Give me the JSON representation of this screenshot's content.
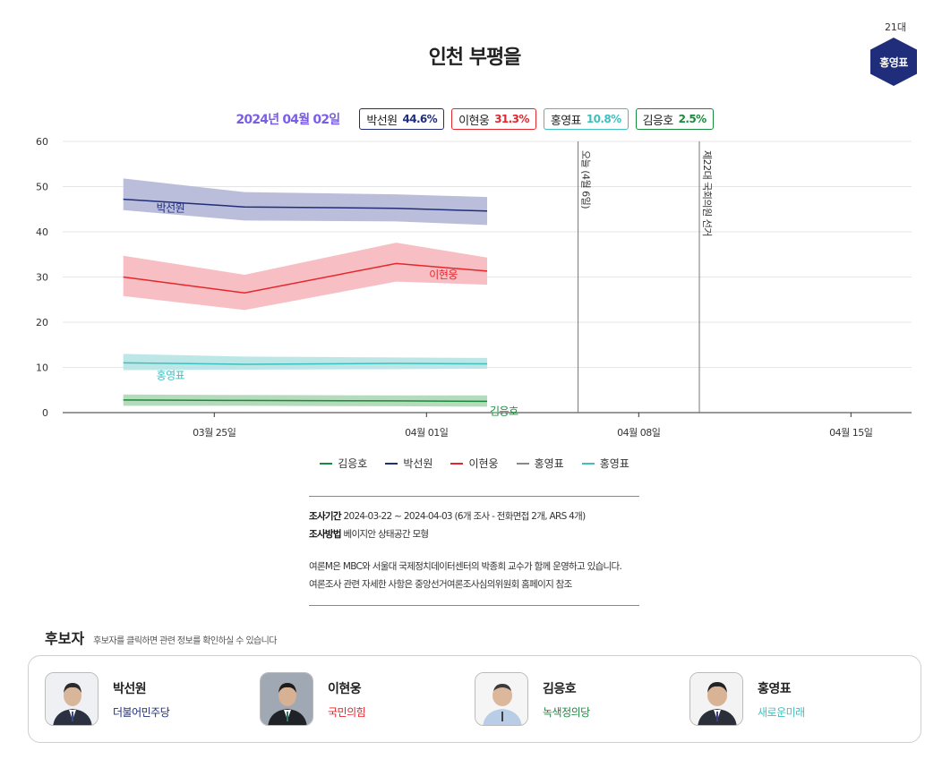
{
  "header": {
    "title": "인천 부평을",
    "term": "21대",
    "incumbent_badge": "홍영표",
    "badge_color": "#1f2d7a"
  },
  "current_values": {
    "date": "2024년 04월 02일",
    "items": [
      {
        "name": "박선원",
        "value": "44.6%",
        "color": "#1f2d7a"
      },
      {
        "name": "이현웅",
        "value": "31.3%",
        "color": "#e6262d"
      },
      {
        "name": "홍영표",
        "value": "10.8%",
        "color": "#3fbfbf"
      },
      {
        "name": "김응호",
        "value": "2.5%",
        "color": "#1a8a3c"
      }
    ]
  },
  "chart_data": {
    "type": "line",
    "ylim": [
      0,
      60
    ],
    "yticks": [
      "0",
      "10",
      "20",
      "30",
      "40",
      "50",
      "60"
    ],
    "xlim": [
      "2024-03-20",
      "2024-04-17"
    ],
    "xticks": [
      {
        "date": "2024-03-25",
        "label": "03월 25일"
      },
      {
        "date": "2024-04-01",
        "label": "04월 01일"
      },
      {
        "date": "2024-04-08",
        "label": "04월 08일"
      },
      {
        "date": "2024-04-15",
        "label": "04월 15일"
      }
    ],
    "grid": true,
    "annotations": [
      {
        "date": "2024-04-06",
        "label": "오늘 (4월 6일)"
      },
      {
        "date": "2024-04-10",
        "label": "제22대 국회의원 선거"
      }
    ],
    "series": [
      {
        "name": "박선원",
        "color": "#1f2d7a",
        "band_color": "#b7bbd9",
        "x": [
          "2024-03-22",
          "2024-03-26",
          "2024-03-31",
          "2024-04-03"
        ],
        "values": [
          47.2,
          45.5,
          45.2,
          44.6
        ],
        "upper": [
          51.8,
          48.8,
          48.3,
          47.7
        ],
        "lower": [
          44.8,
          42.5,
          42.3,
          41.5
        ],
        "label_date": "2024-03-23",
        "label_value": 45.2
      },
      {
        "name": "이현웅",
        "color": "#e6262d",
        "band_color": "#f7bcc0",
        "x": [
          "2024-03-22",
          "2024-03-26",
          "2024-03-31",
          "2024-04-03"
        ],
        "values": [
          30.0,
          26.5,
          33.0,
          31.3
        ],
        "upper": [
          34.7,
          30.5,
          37.6,
          34.3
        ],
        "lower": [
          25.8,
          22.7,
          29.0,
          28.3
        ],
        "label_date": "2024-04-01",
        "label_value": 30.5
      },
      {
        "name": "홍영표",
        "color": "#3fbfbf",
        "band_color": "#b9e6e6",
        "x": [
          "2024-03-22",
          "2024-03-26",
          "2024-03-31",
          "2024-04-03"
        ],
        "values": [
          11.0,
          10.7,
          10.9,
          10.8
        ],
        "upper": [
          13.0,
          12.4,
          12.2,
          12.1
        ],
        "lower": [
          9.4,
          9.5,
          9.6,
          9.7
        ],
        "label_date": "2024-03-23",
        "label_value": 8.2
      },
      {
        "name": "김응호",
        "color": "#1a8a3c",
        "band_color": "#b2d9b8",
        "x": [
          "2024-03-22",
          "2024-03-26",
          "2024-03-31",
          "2024-04-03"
        ],
        "values": [
          2.8,
          2.7,
          2.6,
          2.5
        ],
        "upper": [
          4.0,
          3.9,
          3.8,
          3.8
        ],
        "lower": [
          1.5,
          1.5,
          1.4,
          1.3
        ],
        "label_date": "2024-04-03",
        "label_value": 0.3
      }
    ]
  },
  "legend": [
    {
      "name": "김응호",
      "color": "#1a8a3c"
    },
    {
      "name": "박선원",
      "color": "#1f2d7a"
    },
    {
      "name": "이현웅",
      "color": "#e6262d"
    },
    {
      "name": "홍영표",
      "color": "#888888"
    },
    {
      "name": "홍영표",
      "color": "#3fbfbf"
    }
  ],
  "survey_info": {
    "period_label": "조사기간",
    "period_value": "2024-03-22 ~ 2024-04-03 (6개 조사 - 전화면접 2개, ARS 4개)",
    "method_label": "조사방법",
    "method_value": "베이지안 상태공간 모형",
    "note1": "여론M은 MBC와 서울대 국제정치데이터센터의 박종희 교수가 함께 운영하고 있습니다.",
    "note2": "여론조사 관련 자세한 사항은 중앙선거여론조사심의위원회 홈페이지 참조"
  },
  "candidates": {
    "title": "후보자",
    "subtitle": "후보자를 클릭하면 관련 정보를 확인하실 수 있습니다",
    "items": [
      {
        "name": "박선원",
        "party": "더불어민주당",
        "party_color": "#1f2d7a"
      },
      {
        "name": "이현웅",
        "party": "국민의힘",
        "party_color": "#e6262d"
      },
      {
        "name": "김응호",
        "party": "녹색정의당",
        "party_color": "#1a8a3c"
      },
      {
        "name": "홍영표",
        "party": "새로운미래",
        "party_color": "#3fbfbf"
      }
    ]
  }
}
